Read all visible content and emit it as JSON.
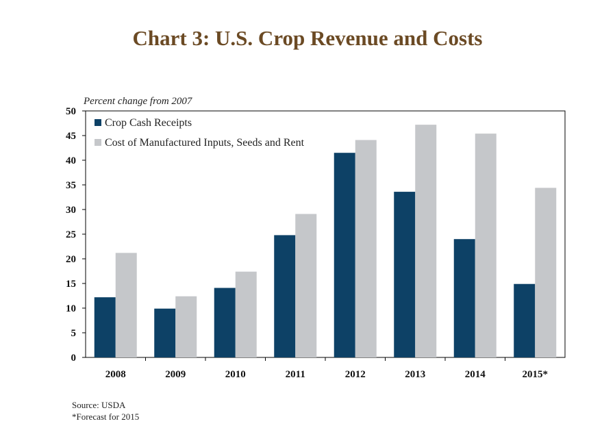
{
  "header": {
    "title": "Chart 3: U.S. Crop Revenue and Costs"
  },
  "chart_data": {
    "type": "bar",
    "title": "Chart 3: U.S. Crop Revenue and Costs",
    "ylabel": "Percent change from 2007",
    "xlabel": "",
    "categories": [
      "2008",
      "2009",
      "2010",
      "2011",
      "2012",
      "2013",
      "2014",
      "2015*"
    ],
    "series": [
      {
        "name": "Crop Cash Receipts",
        "color": "#0D4166",
        "values": [
          12.2,
          9.9,
          14.1,
          24.8,
          41.5,
          33.6,
          24.0,
          14.9
        ]
      },
      {
        "name": "Cost of Manufactured Inputs, Seeds and Rent",
        "color": "#C5C7CA",
        "values": [
          21.2,
          12.4,
          17.4,
          29.1,
          44.1,
          47.2,
          45.4,
          34.4
        ]
      }
    ],
    "ylim": [
      0,
      50
    ],
    "yticks": [
      0,
      5,
      10,
      15,
      20,
      25,
      30,
      35,
      40,
      45,
      50
    ],
    "legend_position": "top-left",
    "grid": false
  },
  "footer": {
    "source": "Source: USDA",
    "note": "*Forecast for 2015"
  }
}
